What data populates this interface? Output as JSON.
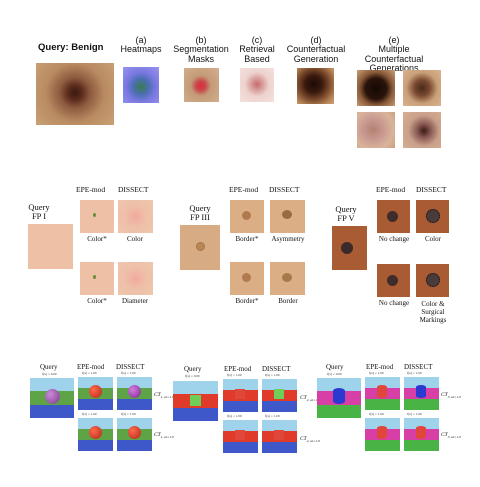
{
  "top": {
    "query_title": "Query: Benign",
    "columns": [
      {
        "letter": "(a)",
        "label": "Heatmaps"
      },
      {
        "letter": "(b)",
        "label": "Segmentation Masks"
      },
      {
        "letter": "(c)",
        "label": "Retrieval Based"
      },
      {
        "letter": "(d)",
        "label": "Counterfactual Generation"
      },
      {
        "letter": "(e)",
        "label": "Multiple Counterfactual Generations"
      }
    ]
  },
  "middle": {
    "groups": [
      {
        "query": "Query",
        "fp": "FP I",
        "col1": "EPE-mod",
        "col2": "DISSECT",
        "cap_top_1": "Color*",
        "cap_top_2": "Color",
        "cap_bot_1": "Color*",
        "cap_bot_2": "Diameter"
      },
      {
        "query": "Query",
        "fp": "FP III",
        "col1": "EPE-mod",
        "col2": "DISSECT",
        "cap_top_1": "Border*",
        "cap_top_2": "Asymmetry",
        "cap_bot_1": "Border*",
        "cap_bot_2": "Border"
      },
      {
        "query": "Query",
        "fp": "FP V",
        "col1": "EPE-mod",
        "col2": "DISSECT",
        "cap_top_1": "No change",
        "cap_top_2": "Color",
        "cap_bot_1": "No change",
        "cap_bot_2": "Color & Surgical Markings"
      }
    ]
  },
  "bottom": {
    "groups": [
      {
        "query": "Query",
        "col1": "EPE-mod",
        "col2": "DISSECT",
        "q_score": "f(x) = 0.00",
        "s1": "f(x) = 1.00",
        "s2": "f(x) = 1.00",
        "s3": "f(x) = 1.00",
        "s4": "f(x) = 1.00",
        "ct1": "CT",
        "ct1_sub": "1, at=1.0",
        "ct2": "CT",
        "ct2_sub": "1, at=1.0"
      },
      {
        "query": "Query",
        "col1": "EPE-mod",
        "col2": "DISSECT",
        "q_score": "f(x) = 0.00",
        "s1": "f(x) = 1.00",
        "s2": "f(x) = 1.00",
        "s3": "f(x) = 1.00",
        "s4": "f(x) = 1.00",
        "ct1": "CT",
        "ct1_sub": "2, at=1.0",
        "ct2": "CT",
        "ct2_sub": "2, at=1.0"
      },
      {
        "query": "Query",
        "col1": "EPE-mod",
        "col2": "DISSECT",
        "q_score": "f(x) = 0.00",
        "s1": "f(x) = 1.00",
        "s2": "f(x) = 1.00",
        "s3": "f(x) = 1.00",
        "s4": "f(x) = 1.00",
        "ct1": "CT",
        "ct1_sub": "3, at=1.0",
        "ct2": "CT",
        "ct2_sub": "3, at=1.0"
      }
    ]
  }
}
